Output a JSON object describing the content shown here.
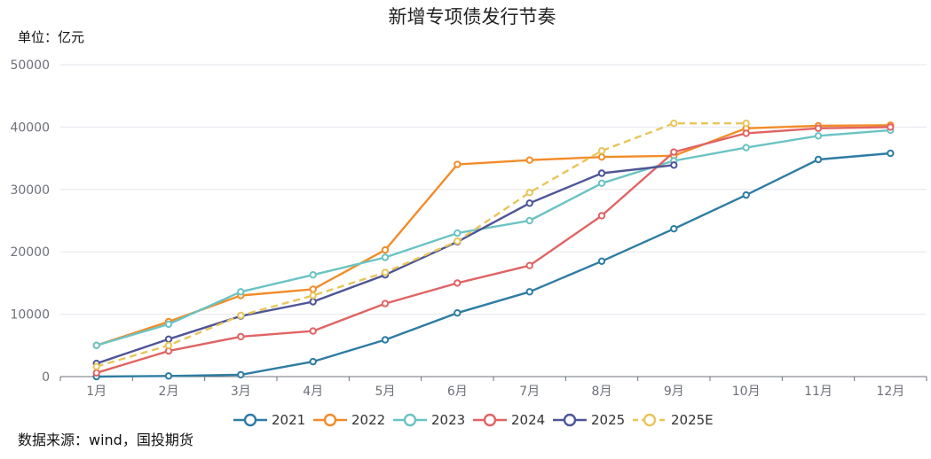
{
  "chart_data": {
    "type": "line",
    "title": "新增专项债发行节奏",
    "unit_label": "单位：亿元",
    "source": "数据来源：wind，国投期货",
    "ylim": [
      0,
      50000
    ],
    "y_ticks": [
      0,
      10000,
      20000,
      30000,
      40000,
      50000
    ],
    "grid": true,
    "legend_position": "bottom",
    "categories": [
      "1月",
      "2月",
      "3月",
      "4月",
      "5月",
      "6月",
      "7月",
      "8月",
      "9月",
      "10月",
      "11月",
      "12月"
    ],
    "series": [
      {
        "name": "2021",
        "color": "#2e7ca3",
        "dashed": false,
        "values": [
          0,
          100,
          300,
          2400,
          5900,
          10200,
          13600,
          18500,
          23700,
          29100,
          34800,
          35800
        ]
      },
      {
        "name": "2022",
        "color": "#f28c28",
        "dashed": false,
        "values": [
          5000,
          8800,
          13000,
          14000,
          20300,
          34000,
          34700,
          35200,
          35400,
          39800,
          40200,
          40300
        ]
      },
      {
        "name": "2023",
        "color": "#6bc3c3",
        "dashed": false,
        "values": [
          5000,
          8400,
          13600,
          16300,
          19100,
          23000,
          25000,
          31000,
          34600,
          36700,
          38600,
          39500
        ]
      },
      {
        "name": "2024",
        "color": "#e06464",
        "dashed": false,
        "values": [
          600,
          4100,
          6400,
          7300,
          11700,
          15000,
          17800,
          25800,
          36000,
          39000,
          39800,
          40000
        ]
      },
      {
        "name": "2025",
        "color": "#4e5596",
        "dashed": false,
        "values": [
          2100,
          6000,
          9700,
          12000,
          16300,
          21600,
          27800,
          32600,
          33900,
          null,
          null,
          null
        ]
      },
      {
        "name": "2025E",
        "color": "#e8c55a",
        "dashed": true,
        "values": [
          1600,
          5000,
          9800,
          13000,
          16700,
          21700,
          29500,
          36200,
          40600,
          40600,
          null,
          null
        ]
      }
    ]
  }
}
